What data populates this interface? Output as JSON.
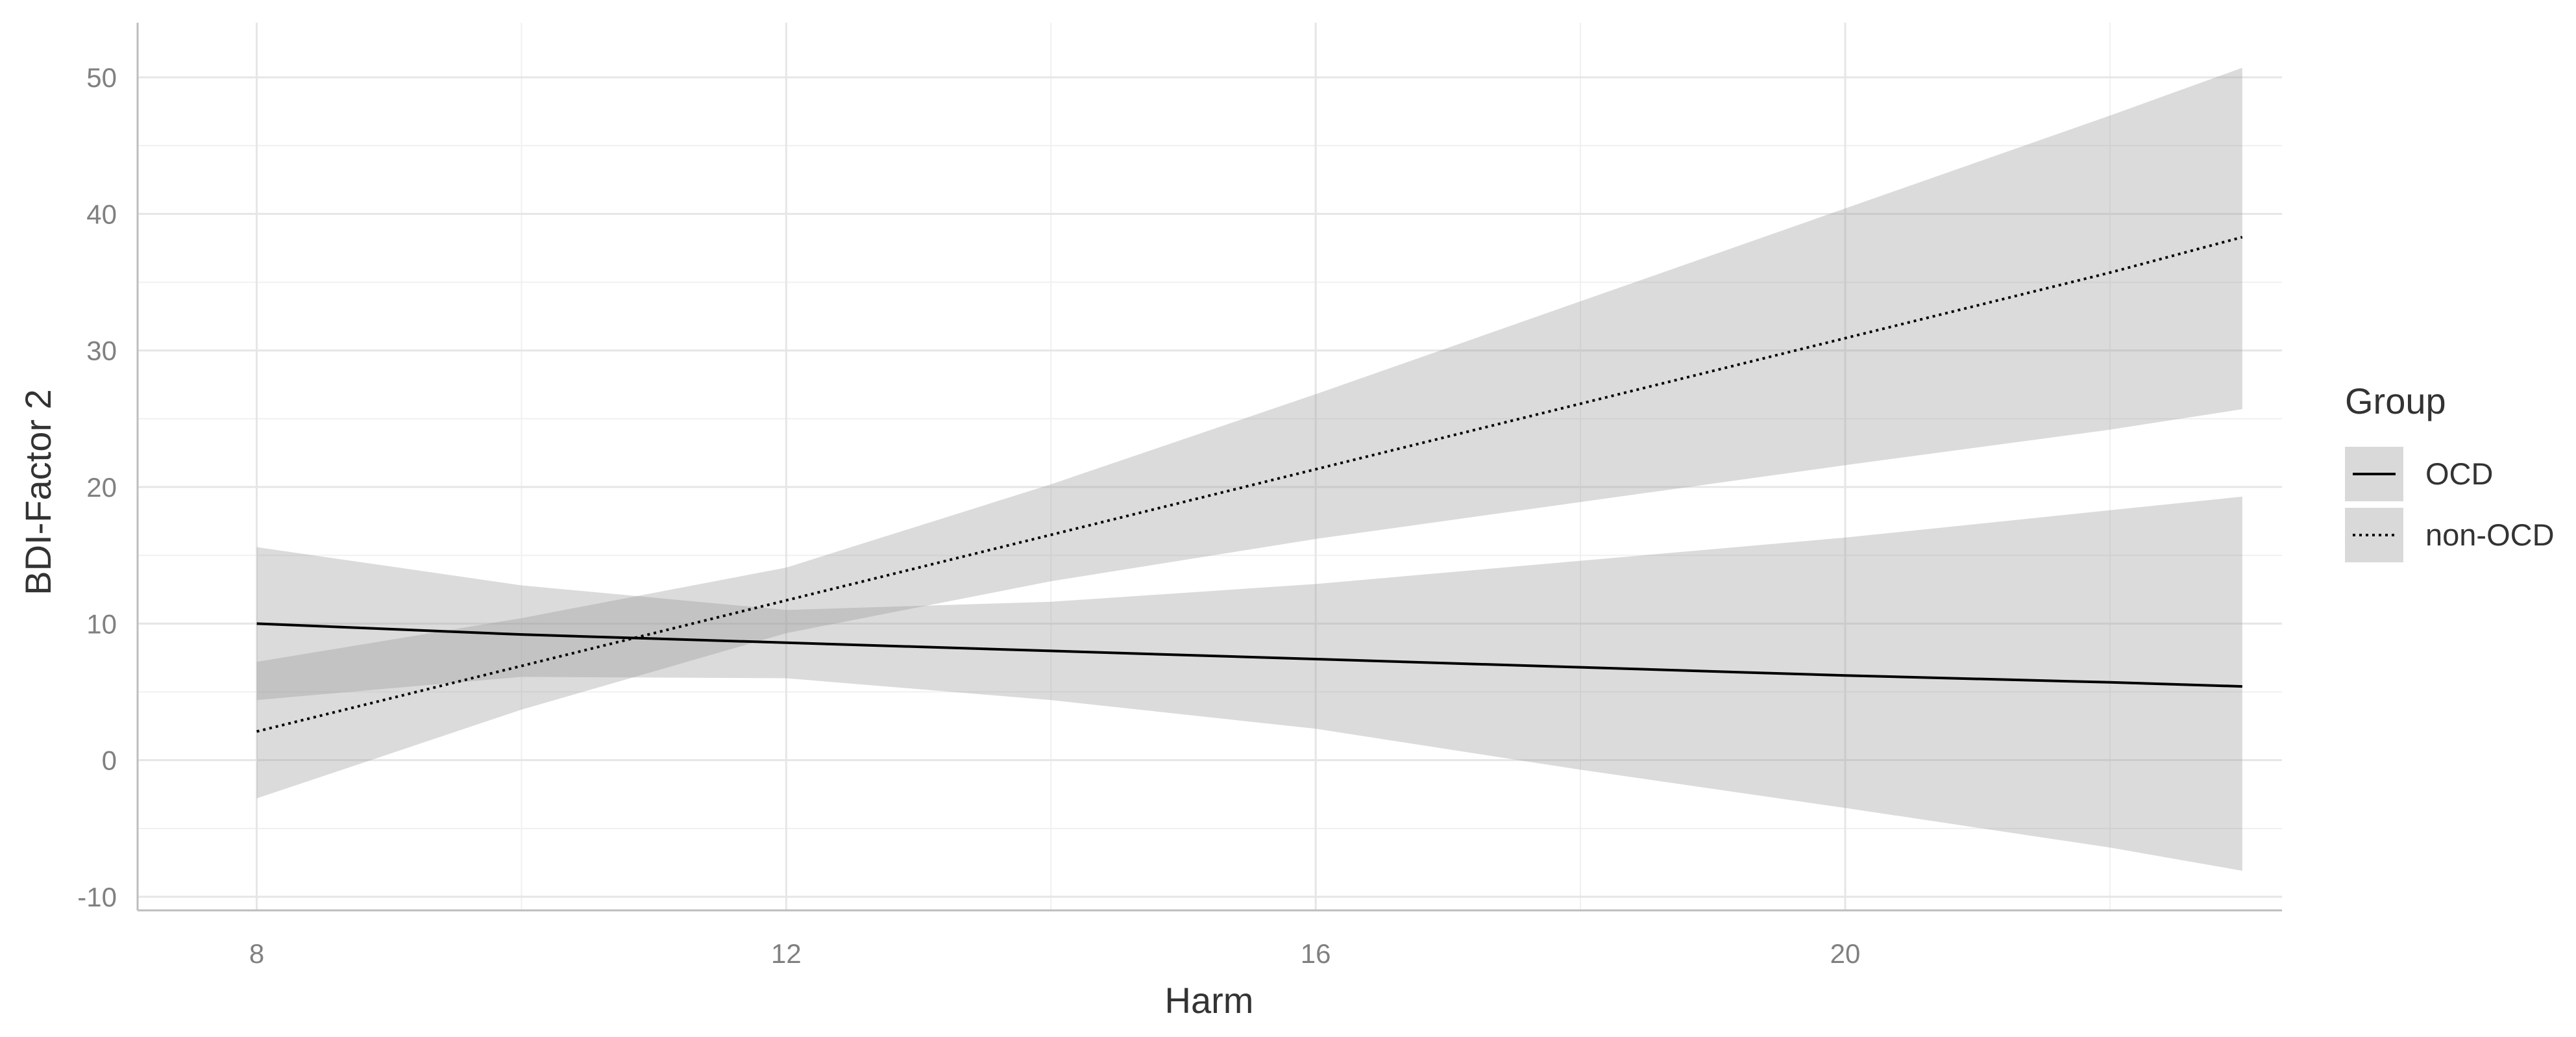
{
  "chart_data": {
    "type": "line",
    "xlabel": "Harm",
    "ylabel": "BDI-Factor 2",
    "xlim": [
      7.1,
      23.3
    ],
    "ylim": [
      -11,
      54
    ],
    "x_ticks": [
      8,
      12,
      16,
      20
    ],
    "x_minor_ticks": [
      10,
      14,
      18,
      22
    ],
    "y_ticks": [
      -10,
      0,
      10,
      20,
      30,
      40,
      50
    ],
    "y_minor_ticks": [
      -5,
      5,
      15,
      25,
      35,
      45
    ],
    "grid": true,
    "ribbon_color": "#d9d9d9",
    "line_color": "#000000",
    "legend": {
      "title": "Group",
      "placement": "right",
      "entries": [
        "OCD",
        "non-OCD"
      ]
    },
    "series": [
      {
        "name": "OCD",
        "linetype": "solid",
        "x": [
          8,
          10,
          12,
          14,
          16,
          18,
          20,
          22,
          23
        ],
        "y": [
          10.0,
          9.2,
          8.6,
          8.0,
          7.4,
          6.8,
          6.2,
          5.7,
          5.4
        ],
        "lower": [
          4.4,
          6.1,
          6.0,
          4.4,
          2.3,
          -0.7,
          -3.5,
          -6.4,
          -8.1
        ],
        "upper": [
          15.6,
          12.8,
          11.0,
          11.6,
          12.9,
          14.6,
          16.3,
          18.3,
          19.3
        ]
      },
      {
        "name": "non-OCD",
        "linetype": "dotted",
        "x": [
          8,
          10,
          12,
          14,
          16,
          18,
          20,
          22,
          23
        ],
        "y": [
          2.1,
          6.9,
          11.7,
          16.5,
          21.3,
          26.1,
          30.9,
          35.7,
          38.3
        ],
        "lower": [
          -2.8,
          3.7,
          9.3,
          13.1,
          16.2,
          18.9,
          21.6,
          24.2,
          25.7
        ],
        "upper": [
          7.2,
          10.4,
          14.1,
          20.2,
          26.8,
          33.6,
          40.4,
          47.2,
          50.7
        ]
      }
    ]
  }
}
